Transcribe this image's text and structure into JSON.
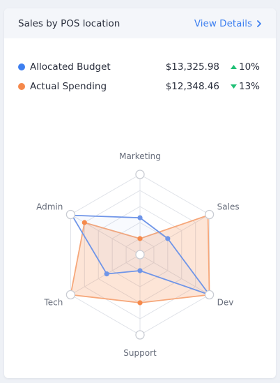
{
  "header": {
    "title": "Sales by POS location",
    "view_details_label": "View Details"
  },
  "legend": [
    {
      "name": "Allocated Budget",
      "value": "$13,325.98",
      "change": "10%",
      "direction": "up",
      "color": "#3d7ff0"
    },
    {
      "name": "Actual Spending",
      "value": "$12,348.46",
      "change": "13%",
      "direction": "down",
      "color": "#f5894b"
    }
  ],
  "colors": {
    "up": "#1fbf75",
    "down": "#1fbf75",
    "accent": "#3d7ff0",
    "budget": "#6f95e8",
    "spending": "#f5894b"
  },
  "chart_data": {
    "type": "radar",
    "categories": [
      "Marketing",
      "Sales",
      "Dev",
      "Support",
      "Tech",
      "Admin"
    ],
    "rmax": 5,
    "rings": 5,
    "series": [
      {
        "name": "Allocated Budget",
        "values": [
          2.3,
          2.0,
          5.0,
          1.0,
          2.4,
          4.9
        ]
      },
      {
        "name": "Actual Spending",
        "values": [
          1.0,
          4.9,
          5.0,
          3.0,
          5.0,
          4.0
        ]
      }
    ]
  }
}
